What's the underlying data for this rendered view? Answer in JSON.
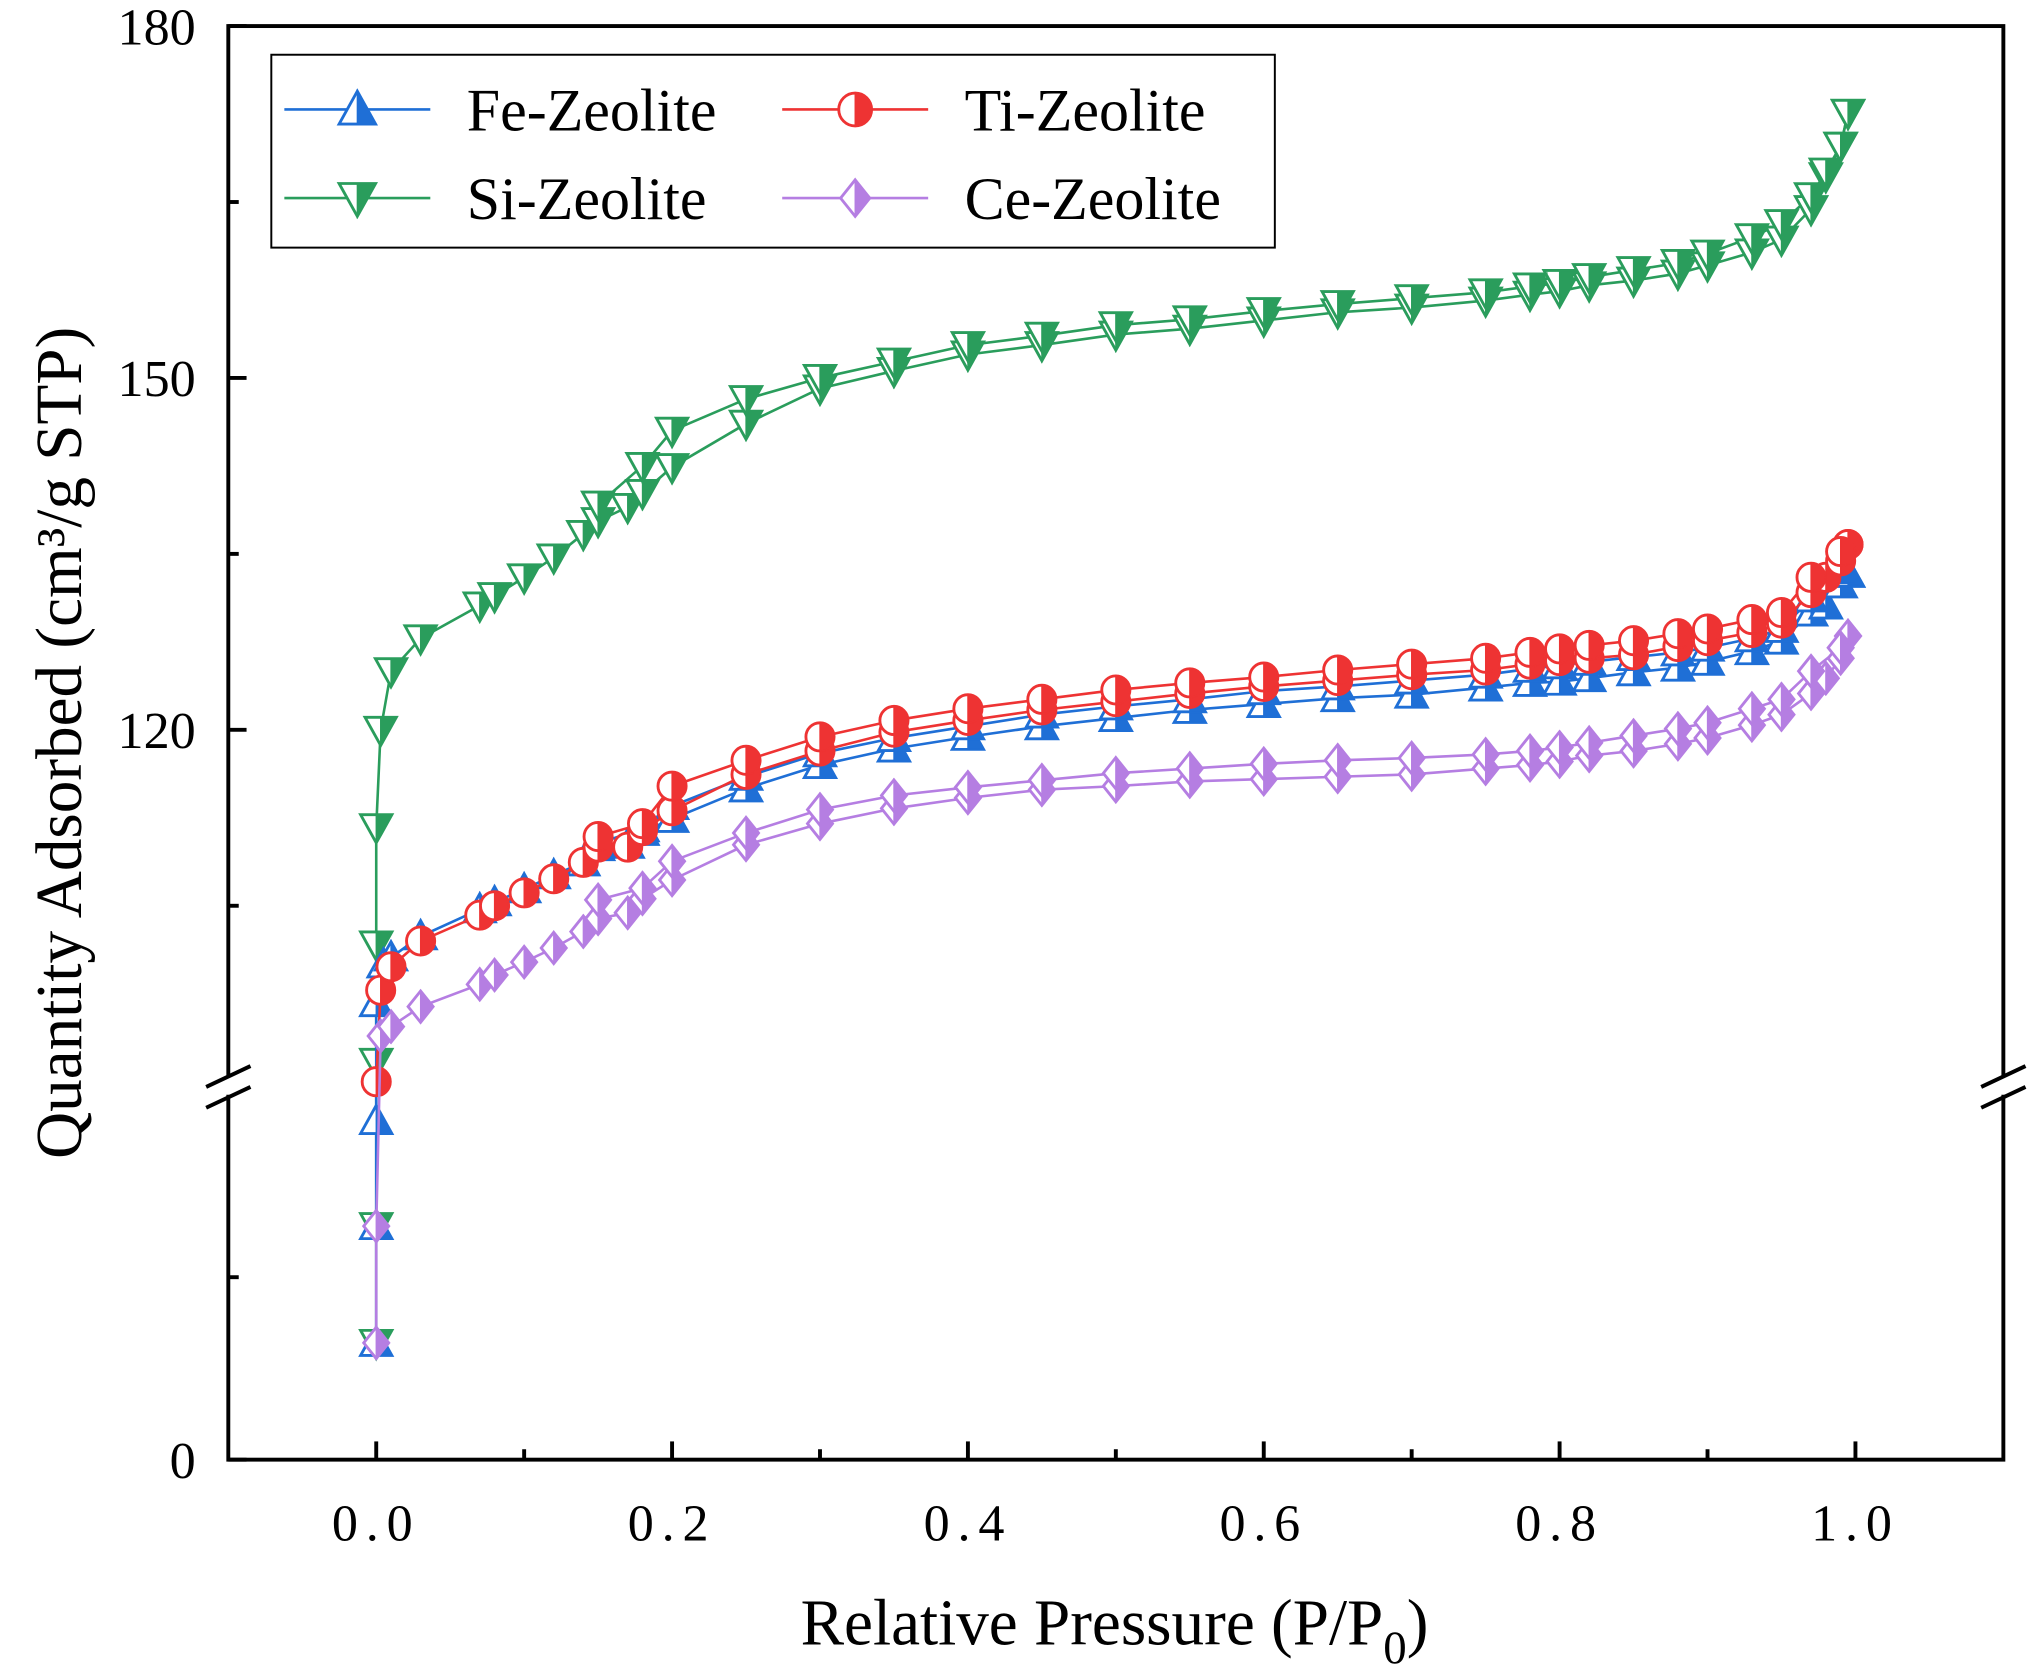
{
  "chart_data": {
    "type": "line",
    "title": "",
    "xlabel": "Relative Pressure (P/P",
    "xlabel_sub": "0",
    "xlabel_end": ")",
    "ylabel": "Quantity Adsorbed (cm³/g STP)",
    "xlim": [
      -0.1,
      1.1
    ],
    "ylim": [
      0,
      180
    ],
    "y_axis_break": [
      50,
      90
    ],
    "x_ticks": [
      0.0,
      0.2,
      0.4,
      0.6,
      0.8,
      1.0
    ],
    "x_tick_labels": [
      "0.0",
      "0.2",
      "0.4",
      "0.6",
      "0.8",
      "1.0"
    ],
    "y_ticks": [
      0,
      120,
      150,
      180
    ],
    "y_tick_labels": [
      "0",
      "120",
      "150",
      "180"
    ],
    "y_minor_ticks": [
      25,
      105,
      135,
      165
    ],
    "grid": false,
    "legend": {
      "placement": "top-left",
      "columns": 2
    },
    "series": [
      {
        "name": "Si-Zeolite",
        "color": "#2a9d5c",
        "marker": "triangle-down",
        "adsorption": {
          "x": [
            0,
            0,
            0,
            0,
            0,
            0.003,
            0.01,
            0.03,
            0.07,
            0.08,
            0.1,
            0.12,
            0.14,
            0.15,
            0.17,
            0.18,
            0.2,
            0.25,
            0.3,
            0.35,
            0.4,
            0.45,
            0.5,
            0.55,
            0.6,
            0.65,
            0.7,
            0.75,
            0.78,
            0.8,
            0.82,
            0.85,
            0.88,
            0.9,
            0.93,
            0.95,
            0.97,
            0.98,
            0.99,
            0.995
          ],
          "y": [
            16,
            32,
            91.7,
            101.7,
            111.7,
            120,
            125,
            127.8,
            130.6,
            131.4,
            133,
            134.7,
            136.7,
            137.8,
            139,
            140.2,
            142.4,
            146.1,
            149.1,
            150.6,
            152,
            152.8,
            153.7,
            154.2,
            154.9,
            155.6,
            156,
            156.6,
            157.1,
            157.4,
            157.9,
            158.3,
            158.9,
            159.6,
            160.7,
            161.8,
            164.4,
            167.2,
            169.8,
            172.6
          ]
        },
        "desorption": {
          "x": [
            0.995,
            0.99,
            0.98,
            0.97,
            0.95,
            0.93,
            0.9,
            0.88,
            0.85,
            0.82,
            0.8,
            0.78,
            0.75,
            0.7,
            0.65,
            0.6,
            0.55,
            0.5,
            0.45,
            0.4,
            0.35,
            0.3,
            0.25,
            0.2,
            0.18,
            0.15
          ],
          "y": [
            172.6,
            169.8,
            167.6,
            165.5,
            163.2,
            162,
            160.6,
            159.8,
            159.2,
            158.6,
            158.1,
            157.8,
            157.3,
            156.8,
            156.3,
            155.7,
            155,
            154.5,
            153.6,
            152.8,
            151.4,
            150,
            148.2,
            145.5,
            142.5,
            139.2
          ]
        }
      },
      {
        "name": "Fe-Zeolite",
        "color": "#1f6fd6",
        "marker": "triangle-up",
        "adsorption": {
          "x": [
            0,
            0,
            0,
            0,
            0.005,
            0.01,
            0.03,
            0.07,
            0.08,
            0.1,
            0.12,
            0.14,
            0.15,
            0.17,
            0.18,
            0.2,
            0.25,
            0.3,
            0.35,
            0.4,
            0.45,
            0.5,
            0.55,
            0.6,
            0.65,
            0.7,
            0.75,
            0.78,
            0.8,
            0.82,
            0.85,
            0.88,
            0.9,
            0.93,
            0.95,
            0.97,
            0.98,
            0.99,
            0.995
          ],
          "y": [
            16,
            32,
            46.4,
            96.7,
            100,
            100.6,
            102.4,
            104.7,
            105.3,
            106.4,
            107.6,
            108.7,
            110,
            110.2,
            111.3,
            112.4,
            115,
            117,
            118.4,
            119.4,
            120.3,
            121,
            121.7,
            122.2,
            122.7,
            123,
            123.6,
            124,
            124.1,
            124.4,
            124.9,
            125.3,
            125.8,
            126.7,
            127.6,
            130,
            130.6,
            132.4,
            133.3
          ]
        },
        "desorption": {
          "x": [
            0.995,
            0.99,
            0.97,
            0.95,
            0.93,
            0.9,
            0.88,
            0.85,
            0.82,
            0.8,
            0.78,
            0.75,
            0.7,
            0.65,
            0.6,
            0.55,
            0.5,
            0.45,
            0.4,
            0.35,
            0.3,
            0.25,
            0.2,
            0.18,
            0.15
          ],
          "y": [
            133.3,
            133.6,
            131.2,
            128.6,
            127.8,
            127,
            126.6,
            126.2,
            125.8,
            125.5,
            125.2,
            124.7,
            124.2,
            123.7,
            123.3,
            122.6,
            122,
            121.3,
            120.3,
            119.3,
            118,
            116,
            113.5,
            111.6,
            110.3
          ]
        }
      },
      {
        "name": "Ti-Zeolite",
        "color": "#ee3333",
        "marker": "circle",
        "adsorption": {
          "x": [
            0,
            0.003,
            0.01,
            0.03,
            0.07,
            0.08,
            0.1,
            0.12,
            0.14,
            0.15,
            0.17,
            0.18,
            0.2,
            0.25,
            0.3,
            0.35,
            0.4,
            0.45,
            0.5,
            0.55,
            0.6,
            0.65,
            0.7,
            0.75,
            0.78,
            0.8,
            0.82,
            0.85,
            0.88,
            0.9,
            0.93,
            0.95,
            0.97,
            0.98,
            0.99,
            0.995
          ],
          "y": [
            90,
            97.8,
            99.8,
            102,
            104.2,
            105,
            106.1,
            107.3,
            108.7,
            110,
            110,
            111.4,
            113.1,
            116.2,
            118.2,
            119.8,
            120.8,
            121.7,
            122.4,
            123.1,
            123.7,
            124.2,
            124.7,
            125.1,
            125.6,
            125.9,
            126.1,
            126.4,
            127.1,
            127.6,
            128.3,
            129.1,
            131.7,
            133,
            134.4,
            135.8
          ]
        },
        "desorption": {
          "x": [
            0.995,
            0.99,
            0.97,
            0.95,
            0.93,
            0.9,
            0.88,
            0.85,
            0.82,
            0.8,
            0.78,
            0.75,
            0.7,
            0.65,
            0.6,
            0.55,
            0.5,
            0.45,
            0.4,
            0.35,
            0.3,
            0.25,
            0.2,
            0.18,
            0.15
          ],
          "y": [
            135.8,
            135.2,
            133,
            130,
            129.4,
            128.6,
            128.2,
            127.6,
            127.2,
            126.9,
            126.6,
            126.1,
            125.6,
            125.1,
            124.5,
            124,
            123.4,
            122.6,
            121.8,
            120.8,
            119.4,
            117.4,
            115.2,
            112,
            110.9
          ]
        }
      },
      {
        "name": "Ce-Zeolite",
        "color": "#b57ee2",
        "marker": "diamond",
        "adsorption": {
          "x": [
            0,
            0,
            0.003,
            0.01,
            0.03,
            0.07,
            0.08,
            0.1,
            0.12,
            0.14,
            0.15,
            0.17,
            0.18,
            0.2,
            0.25,
            0.3,
            0.35,
            0.4,
            0.45,
            0.5,
            0.55,
            0.6,
            0.65,
            0.7,
            0.75,
            0.78,
            0.8,
            0.82,
            0.85,
            0.88,
            0.9,
            0.93,
            0.95,
            0.97,
            0.98,
            0.99,
            0.995
          ],
          "y": [
            16,
            32,
            93.9,
            94.7,
            96.4,
            98.3,
            99.1,
            100.2,
            101.4,
            102.8,
            103.9,
            104.4,
            105.6,
            107.2,
            110.2,
            112,
            113.3,
            114.2,
            114.9,
            115.2,
            115.6,
            115.8,
            116,
            116.2,
            116.7,
            117,
            117.3,
            117.8,
            118.2,
            118.8,
            119.3,
            120.4,
            121.3,
            123.1,
            124.4,
            126.1,
            128
          ]
        },
        "desorption": {
          "x": [
            0.995,
            0.99,
            0.97,
            0.95,
            0.93,
            0.9,
            0.88,
            0.85,
            0.82,
            0.8,
            0.78,
            0.75,
            0.7,
            0.65,
            0.6,
            0.55,
            0.5,
            0.45,
            0.4,
            0.35,
            0.3,
            0.25,
            0.2,
            0.18,
            0.15
          ],
          "y": [
            128,
            127,
            125,
            122.6,
            121.8,
            120.6,
            120.1,
            119.5,
            118.9,
            118.5,
            118.2,
            117.9,
            117.6,
            117.4,
            117.1,
            116.7,
            116.3,
            115.7,
            115.1,
            114.4,
            113.2,
            111.2,
            108.8,
            106.5,
            105.5
          ]
        }
      }
    ],
    "legend_entries": [
      "Fe-Zeolite",
      "Ti-Zeolite",
      "Si-Zeolite",
      "Ce-Zeolite"
    ]
  }
}
